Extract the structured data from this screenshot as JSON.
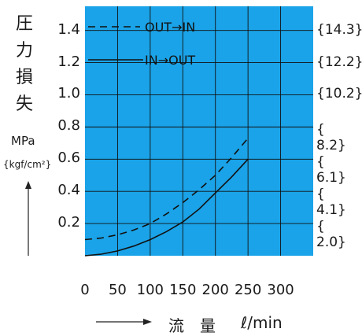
{
  "chart_data": {
    "type": "line",
    "ylabel_chars": [
      "圧",
      "力",
      "損",
      "失"
    ],
    "ylabel_unit": "MPa",
    "ylabel_unit_alt": "{kgf/cm²}",
    "xlabel": "流　量",
    "xlabel_unit": "ℓ/min",
    "x_ticks": [
      "0",
      "50",
      "100",
      "150",
      "200",
      "250",
      "300"
    ],
    "y_ticks": [
      "0.2",
      "0.4",
      "0.6",
      "0.8",
      "1.0",
      "1.2",
      "1.4"
    ],
    "y_ticks_alt": [
      "{　2.0}",
      "{　4.1}",
      "{　6.1}",
      "{　8.2}",
      "{10.2}",
      "{12.2}",
      "{14.3}"
    ],
    "xlim": [
      0,
      350
    ],
    "ylim": [
      0,
      1.55
    ],
    "grid": true,
    "background": "#1aa3e8",
    "line_color": "#111111",
    "legend": [
      {
        "label": "OUT→IN",
        "style": "dashed"
      },
      {
        "label": "IN→OUT",
        "style": "solid"
      }
    ],
    "series": [
      {
        "name": "OUT→IN",
        "style": "dashed",
        "x": [
          0,
          25,
          50,
          75,
          100,
          125,
          150,
          175,
          200,
          225,
          250
        ],
        "y": [
          0.1,
          0.11,
          0.13,
          0.16,
          0.2,
          0.26,
          0.33,
          0.41,
          0.5,
          0.61,
          0.73
        ]
      },
      {
        "name": "IN→OUT",
        "style": "solid",
        "x": [
          0,
          25,
          50,
          75,
          100,
          125,
          150,
          175,
          200,
          225,
          250
        ],
        "y": [
          0.0,
          0.01,
          0.03,
          0.06,
          0.1,
          0.15,
          0.21,
          0.29,
          0.39,
          0.49,
          0.6
        ]
      }
    ]
  }
}
